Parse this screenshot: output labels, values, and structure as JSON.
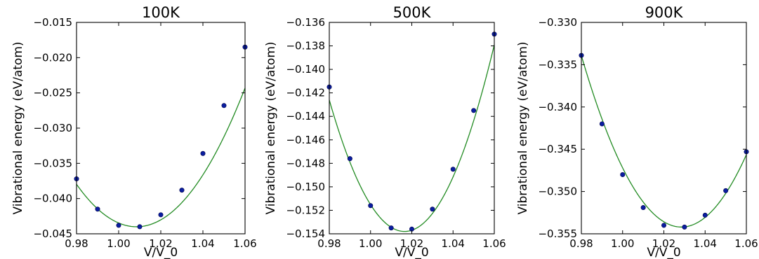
{
  "chart_data": [
    {
      "type": "scatter",
      "title": "100K",
      "xlabel": "V/V_0",
      "ylabel": "Vibrational energy (eV/atom)",
      "xlim": [
        0.98,
        1.06
      ],
      "ylim": [
        -0.045,
        -0.015
      ],
      "xticks": [
        0.98,
        1.0,
        1.02,
        1.04,
        1.06
      ],
      "xtick_labels": [
        "0.98",
        "1.00",
        "1.02",
        "1.04",
        "1.06"
      ],
      "yticks": [
        -0.045,
        -0.04,
        -0.035,
        -0.03,
        -0.025,
        -0.02,
        -0.015
      ],
      "ytick_labels": [
        "−0.045",
        "−0.040",
        "−0.035",
        "−0.030",
        "−0.025",
        "−0.020",
        "−0.015"
      ],
      "grid": false,
      "series": [
        {
          "kind": "points",
          "color": "#0a1ea0",
          "x": [
            0.98,
            0.99,
            1.0,
            1.01,
            1.02,
            1.03,
            1.04,
            1.05,
            1.06
          ],
          "y": [
            -0.0372,
            -0.0415,
            -0.0438,
            -0.044,
            -0.0423,
            -0.0388,
            -0.0336,
            -0.0268,
            -0.0185
          ]
        },
        {
          "kind": "fit",
          "color": "#228b22",
          "x0": 1.0085,
          "ymin": -0.044,
          "k": 7.42
        }
      ]
    },
    {
      "type": "scatter",
      "title": "500K",
      "xlabel": "V/V_0",
      "ylabel": "Vibrational energy (eV/atom)",
      "xlim": [
        0.98,
        1.06
      ],
      "ylim": [
        -0.154,
        -0.136
      ],
      "xticks": [
        0.98,
        1.0,
        1.02,
        1.04,
        1.06
      ],
      "xtick_labels": [
        "0.98",
        "1.00",
        "1.02",
        "1.04",
        "1.06"
      ],
      "yticks": [
        -0.154,
        -0.152,
        -0.15,
        -0.148,
        -0.146,
        -0.144,
        -0.142,
        -0.14,
        -0.138,
        -0.136
      ],
      "ytick_labels": [
        "−0.154",
        "−0.152",
        "−0.150",
        "−0.148",
        "−0.146",
        "−0.144",
        "−0.142",
        "−0.140",
        "−0.138",
        "−0.136"
      ],
      "grid": false,
      "series": [
        {
          "kind": "points",
          "color": "#0a1ea0",
          "x": [
            0.98,
            0.99,
            1.0,
            1.01,
            1.02,
            1.03,
            1.04,
            1.05,
            1.06
          ],
          "y": [
            -0.1415,
            -0.1476,
            -0.1516,
            -0.1535,
            -0.1536,
            -0.1519,
            -0.1485,
            -0.1435,
            -0.137
          ]
        },
        {
          "kind": "fit",
          "color": "#228b22",
          "x0": 1.0165,
          "ymin": -0.1538,
          "k": 8.4
        }
      ]
    },
    {
      "type": "scatter",
      "title": "900K",
      "xlabel": "V/V_0",
      "ylabel": "Vibrational energy (eV/atom)",
      "xlim": [
        0.98,
        1.06
      ],
      "ylim": [
        -0.355,
        -0.33
      ],
      "xticks": [
        0.98,
        1.0,
        1.02,
        1.04,
        1.06
      ],
      "xtick_labels": [
        "0.98",
        "1.00",
        "1.02",
        "1.04",
        "1.06"
      ],
      "yticks": [
        -0.355,
        -0.35,
        -0.345,
        -0.34,
        -0.335,
        -0.33
      ],
      "ytick_labels": [
        "−0.355",
        "−0.350",
        "−0.345",
        "−0.340",
        "−0.335",
        "−0.330"
      ],
      "grid": false,
      "series": [
        {
          "kind": "points",
          "color": "#0a1ea0",
          "x": [
            0.98,
            0.99,
            1.0,
            1.01,
            1.02,
            1.03,
            1.04,
            1.05,
            1.06
          ],
          "y": [
            -0.3339,
            -0.342,
            -0.348,
            -0.3519,
            -0.354,
            -0.3542,
            -0.3528,
            -0.3499,
            -0.3453
          ]
        },
        {
          "kind": "fit",
          "color": "#228b22",
          "x0": 1.0285,
          "ymin": -0.3542,
          "k": 8.62
        }
      ]
    }
  ]
}
